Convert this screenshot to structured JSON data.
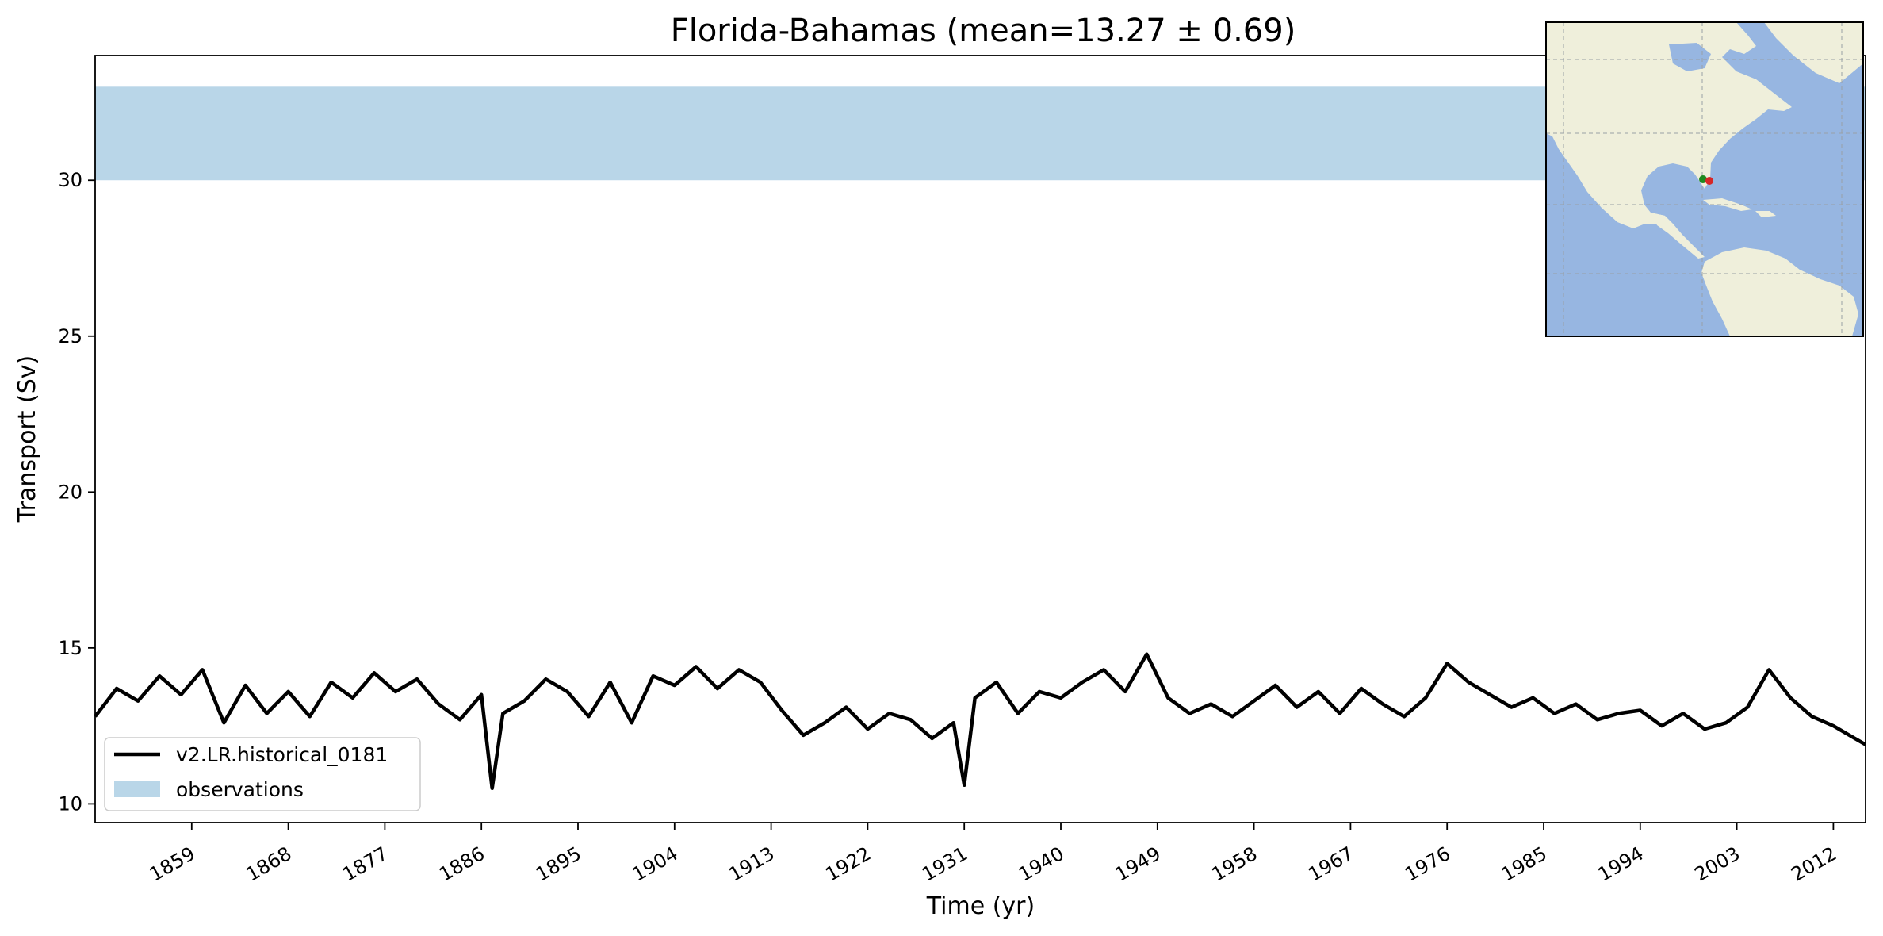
{
  "chart_data": {
    "type": "line",
    "title": "Florida-Bahamas (mean=13.27 ± 0.69)",
    "xlabel": "Time (yr)",
    "ylabel": "Transport (Sv)",
    "xlim": [
      1850,
      2015
    ],
    "ylim": [
      9.4,
      34.0
    ],
    "x_ticks": [
      1859,
      1868,
      1877,
      1886,
      1895,
      1904,
      1913,
      1922,
      1931,
      1940,
      1949,
      1958,
      1967,
      1976,
      1985,
      1994,
      2003,
      2012
    ],
    "y_ticks": [
      10,
      15,
      20,
      25,
      30
    ],
    "grid": false,
    "legend_position": "lower-left",
    "observations": {
      "name": "observations",
      "min": 30.0,
      "max": 33.0,
      "color": "#b9d6e8"
    },
    "series": [
      {
        "name": "v2.LR.historical_0181",
        "color": "#000000",
        "x": [
          1850,
          1852,
          1854,
          1856,
          1858,
          1860,
          1862,
          1864,
          1866,
          1868,
          1870,
          1872,
          1874,
          1876,
          1878,
          1880,
          1882,
          1884,
          1886,
          1887,
          1888,
          1890,
          1892,
          1894,
          1896,
          1898,
          1900,
          1902,
          1904,
          1906,
          1908,
          1910,
          1912,
          1914,
          1916,
          1918,
          1920,
          1922,
          1924,
          1926,
          1928,
          1930,
          1931,
          1932,
          1934,
          1936,
          1938,
          1940,
          1942,
          1944,
          1946,
          1948,
          1950,
          1952,
          1954,
          1956,
          1958,
          1960,
          1962,
          1964,
          1966,
          1968,
          1970,
          1972,
          1974,
          1976,
          1978,
          1980,
          1982,
          1984,
          1986,
          1988,
          1990,
          1992,
          1994,
          1996,
          1998,
          2000,
          2002,
          2004,
          2006,
          2008,
          2010,
          2012,
          2014,
          2015
        ],
        "values": [
          12.8,
          13.7,
          13.3,
          14.1,
          13.5,
          14.3,
          12.6,
          13.8,
          12.9,
          13.6,
          12.8,
          13.9,
          13.4,
          14.2,
          13.6,
          14.0,
          13.2,
          12.7,
          13.5,
          10.5,
          12.9,
          13.3,
          14.0,
          13.6,
          12.8,
          13.9,
          12.6,
          14.1,
          13.8,
          14.4,
          13.7,
          14.3,
          13.9,
          13.0,
          12.2,
          12.6,
          13.1,
          12.4,
          12.9,
          12.7,
          12.1,
          12.6,
          10.6,
          13.4,
          13.9,
          12.9,
          13.6,
          13.4,
          13.9,
          14.3,
          13.6,
          14.8,
          13.4,
          12.9,
          13.2,
          12.8,
          13.3,
          13.8,
          13.1,
          13.6,
          12.9,
          13.7,
          13.2,
          12.8,
          13.4,
          14.5,
          13.9,
          13.5,
          13.1,
          13.4,
          12.9,
          13.2,
          12.7,
          12.9,
          13.0,
          12.5,
          12.9,
          12.4,
          12.6,
          13.1,
          14.3,
          13.4,
          12.8,
          12.5,
          12.1,
          11.9
        ]
      }
    ],
    "inset_map": {
      "markers": [
        {
          "label": "green",
          "color": "#1e8a1e",
          "lon": -80.1,
          "lat": 26.6
        },
        {
          "label": "red",
          "color": "#d62728",
          "lon": -79.0,
          "lat": 26.4
        }
      ],
      "colors": {
        "ocean": "#97b6e1",
        "land": "#efefdb",
        "grid": "#9aa0a6",
        "frame": "#000000"
      }
    }
  }
}
